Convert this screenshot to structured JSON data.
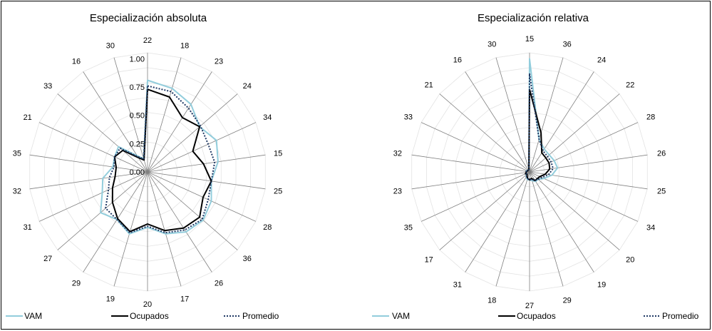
{
  "colors": {
    "vam": "#92cddc",
    "ocupados": "#000000",
    "promedio": "#1f3864",
    "grid": "#bfbfbf",
    "spoke": "#808080"
  },
  "chart_data": [
    {
      "type": "radar",
      "title": "Especialización absoluta",
      "categories": [
        "22",
        "18",
        "23",
        "24",
        "34",
        "15",
        "25",
        "28",
        "36",
        "26",
        "17",
        "20",
        "19",
        "29",
        "27",
        "31",
        "32",
        "35",
        "21",
        "33",
        "16",
        "30"
      ],
      "rlim": [
        0,
        1
      ],
      "ticks": [
        "0.00",
        "0.25",
        "0.50",
        "0.75",
        "1.00"
      ],
      "tick_values": [
        0,
        0.25,
        0.5,
        0.75,
        1.0
      ],
      "series": [
        {
          "name": "VAM",
          "values": [
            0.81,
            0.77,
            0.71,
            0.61,
            0.67,
            0.63,
            0.57,
            0.62,
            0.65,
            0.63,
            0.57,
            0.49,
            0.57,
            0.5,
            0.55,
            0.44,
            0.4,
            0.31,
            0.32,
            0.34,
            0.17,
            0.12
          ]
        },
        {
          "name": "Ocupados",
          "values": [
            0.73,
            0.69,
            0.57,
            0.61,
            0.44,
            0.5,
            0.57,
            0.54,
            0.61,
            0.59,
            0.54,
            0.46,
            0.55,
            0.49,
            0.41,
            0.34,
            0.29,
            0.28,
            0.32,
            0.29,
            0.15,
            0.11
          ]
        },
        {
          "name": "Promedio",
          "values": [
            0.76,
            0.74,
            0.67,
            0.62,
            0.59,
            0.6,
            0.57,
            0.59,
            0.64,
            0.61,
            0.56,
            0.48,
            0.56,
            0.5,
            0.49,
            0.38,
            0.34,
            0.3,
            0.32,
            0.32,
            0.16,
            0.12
          ]
        }
      ],
      "grid": true,
      "legend": "bottom"
    },
    {
      "type": "radar",
      "title": "Especialización relativa",
      "categories": [
        "15",
        "36",
        "24",
        "22",
        "28",
        "26",
        "25",
        "34",
        "20",
        "19",
        "29",
        "27",
        "18",
        "31",
        "17",
        "35",
        "23",
        "32",
        "33",
        "21",
        "16",
        "30"
      ],
      "series": [
        {
          "name": "VAM",
          "values": [
            1.0,
            0.3,
            0.24,
            0.23,
            0.24,
            0.25,
            0.2,
            0.14,
            0.1,
            0.1,
            0.08,
            0.07,
            0.07,
            0.05,
            0.04,
            0.03,
            0.03,
            0.03,
            0.03,
            0.02,
            0.02,
            0.02
          ]
        },
        {
          "name": "Ocupados",
          "values": [
            0.73,
            0.36,
            0.2,
            0.19,
            0.19,
            0.18,
            0.14,
            0.1,
            0.09,
            0.09,
            0.06,
            0.07,
            0.06,
            0.04,
            0.03,
            0.04,
            0.03,
            0.03,
            0.02,
            0.02,
            0.02,
            0.02
          ]
        },
        {
          "name": "Promedio",
          "values": [
            0.87,
            0.3,
            0.22,
            0.21,
            0.21,
            0.21,
            0.17,
            0.12,
            0.1,
            0.09,
            0.07,
            0.07,
            0.06,
            0.05,
            0.04,
            0.03,
            0.03,
            0.03,
            0.02,
            0.02,
            0.02,
            0.02
          ]
        }
      ],
      "grid": true,
      "legend": "bottom"
    }
  ]
}
